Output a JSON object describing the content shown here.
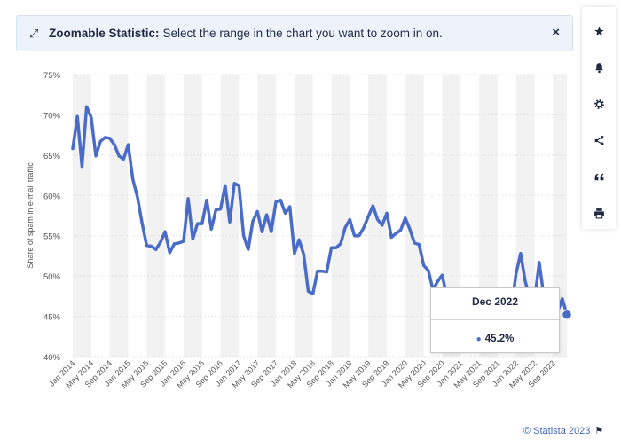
{
  "banner": {
    "expand_icon": "expand-arrows-icon",
    "title": "Zoomable Statistic:",
    "message": "Select the range in the chart you want to zoom in on.",
    "close_label": "×"
  },
  "toolbar": {
    "items": [
      "star-icon",
      "bell-icon",
      "gear-icon",
      "share-icon",
      "quote-icon",
      "print-icon"
    ]
  },
  "tooltip": {
    "date": "Dec 2022",
    "value": "45.2%"
  },
  "footer": {
    "credit": "© Statista 2023",
    "flag_icon": "flag-icon"
  },
  "colors": {
    "line": "#4a6cc8",
    "band": "#f2f2f2",
    "grid": "#e3e3e3"
  },
  "chart_data": {
    "type": "line",
    "title": "",
    "xlabel": "",
    "ylabel": "Share of spam in e-mail traffic",
    "ylim": [
      40,
      75
    ],
    "yticks": [
      "40%",
      "45%",
      "50%",
      "55%",
      "60%",
      "65%",
      "70%",
      "75%"
    ],
    "xticks": [
      "Jan 2014",
      "May 2014",
      "Sep 2014",
      "Jan 2015",
      "May 2015",
      "Sep 2015",
      "Jan 2016",
      "May 2016",
      "Sep 2016",
      "Jan 2017",
      "May 2017",
      "Sep 2017",
      "Jan 2018",
      "May 2018",
      "Sep 2018",
      "Jan 2019",
      "May 2019",
      "Sep 2019",
      "Jan 2020",
      "May 2020",
      "Sep 2020",
      "Jan 2021",
      "May 2021",
      "Sep 2021",
      "Jan 2022",
      "May 2022",
      "Sep 2022"
    ],
    "x_start": "Jan 2014",
    "x_end": "Dec 2022",
    "grid": true,
    "legend": "none",
    "series": [
      {
        "values": [
          65.8,
          69.8,
          63.6,
          71.0,
          69.7,
          64.9,
          66.7,
          67.2,
          67.1,
          66.3,
          64.9,
          64.5,
          66.3,
          62.0,
          59.8,
          56.6,
          53.8,
          53.7,
          53.3,
          54.2,
          55.5,
          52.9,
          54.0,
          54.1,
          54.3,
          59.6,
          54.6,
          56.5,
          56.5,
          59.4,
          55.8,
          58.2,
          58.3,
          61.2,
          56.7,
          61.5,
          61.2,
          55.0,
          53.3,
          56.8,
          58.0,
          55.5,
          57.6,
          55.5,
          59.2,
          59.4,
          57.8,
          58.6,
          52.8,
          54.5,
          52.7,
          48.1,
          47.8,
          50.6,
          50.6,
          50.5,
          53.5,
          53.5,
          54.0,
          56.0,
          57.0,
          55.0,
          55.0,
          56.0,
          57.4,
          58.7,
          57.0,
          56.3,
          57.8,
          54.8,
          55.3,
          55.7,
          57.2,
          55.8,
          54.1,
          53.9,
          51.3,
          50.7,
          48.3,
          49.3,
          50.1,
          47.5,
          45.5,
          44.0,
          44.0,
          44.0,
          44.0,
          44.0,
          44.0,
          44.0,
          44.0,
          44.0,
          44.0,
          44.0,
          44.0,
          46.0,
          50.3,
          52.8,
          49.3,
          47.3,
          47.0,
          51.7,
          47.5,
          45.2,
          46.0,
          45.6,
          47.2,
          45.2
        ]
      }
    ]
  }
}
